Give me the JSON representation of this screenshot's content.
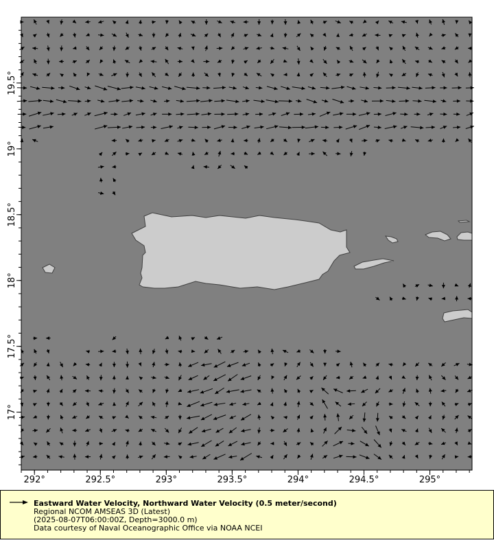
{
  "chart_data": {
    "type": "vector-map",
    "x_axis": {
      "range": [
        291.9,
        295.32
      ],
      "ticks": [
        292,
        292.5,
        293,
        293.5,
        294,
        294.5,
        295
      ],
      "tick_labels": [
        "292°",
        "292.5°",
        "293°",
        "293.5°",
        "294°",
        "294.5°",
        "295°"
      ]
    },
    "y_axis": {
      "range": [
        16.56,
        20.0
      ],
      "ticks": [
        17,
        17.5,
        18,
        18.5,
        19,
        19.5
      ],
      "tick_labels": [
        "17°",
        "17.5°",
        "18°",
        "18.5°",
        "19°",
        "19.5°"
      ]
    },
    "vector_spacing_deg": 0.1,
    "reference_vector": "0.5 meter/second",
    "grid": false
  },
  "colors": {
    "ocean": "#808080",
    "land": "#cccccc",
    "coast": "#404040",
    "vectors": "#000000",
    "legend_bg": "#ffffcc"
  },
  "legend": {
    "title": "Eastward Water Velocity, Northward Water Velocity (0.5 meter/second)",
    "line2": "Regional NCOM AMSEAS 3D (Latest)",
    "line3": "(2025-08-07T06:00:00Z, Depth=3000.0 m)",
    "line4": "Data courtesy of Naval Oceanographic Office via NOAA NCEI"
  }
}
